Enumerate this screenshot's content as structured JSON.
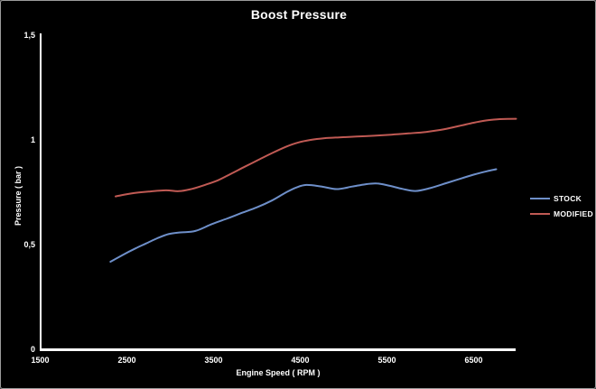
{
  "chart_data": {
    "type": "line",
    "title": "Boost Pressure",
    "xlabel": "Engine Speed ( RPM )",
    "ylabel": "Pressure ( bar )",
    "xlim": [
      1500,
      6990
    ],
    "ylim": [
      0,
      1.5
    ],
    "grid": false,
    "legend_position": "right",
    "background_color": "#000000",
    "axis_color": "#ffffff",
    "x_ticks": {
      "values": [
        1500,
        2500,
        3500,
        4500,
        5500,
        6500
      ],
      "labels": [
        "1500",
        "2500",
        "3500",
        "4500",
        "5500",
        "6500"
      ]
    },
    "y_ticks": {
      "values": [
        0,
        0.5,
        1,
        1.5
      ],
      "labels": [
        "0",
        "0,5",
        "1",
        "1,5"
      ]
    },
    "series": [
      {
        "name": "STOCK",
        "color": "#6e8fc9",
        "points": [
          [
            2310,
            0.418
          ],
          [
            2450,
            0.45
          ],
          [
            2600,
            0.482
          ],
          [
            2720,
            0.505
          ],
          [
            2850,
            0.53
          ],
          [
            2980,
            0.55
          ],
          [
            3120,
            0.558
          ],
          [
            3290,
            0.565
          ],
          [
            3480,
            0.598
          ],
          [
            3660,
            0.625
          ],
          [
            3830,
            0.652
          ],
          [
            4000,
            0.678
          ],
          [
            4170,
            0.71
          ],
          [
            4330,
            0.748
          ],
          [
            4450,
            0.772
          ],
          [
            4570,
            0.785
          ],
          [
            4750,
            0.777
          ],
          [
            4920,
            0.765
          ],
          [
            5100,
            0.777
          ],
          [
            5250,
            0.788
          ],
          [
            5380,
            0.792
          ],
          [
            5520,
            0.782
          ],
          [
            5680,
            0.766
          ],
          [
            5830,
            0.756
          ],
          [
            6000,
            0.77
          ],
          [
            6180,
            0.793
          ],
          [
            6350,
            0.815
          ],
          [
            6500,
            0.834
          ],
          [
            6650,
            0.85
          ],
          [
            6760,
            0.86
          ]
        ]
      },
      {
        "name": "MODIFIED",
        "color": "#c05a54",
        "points": [
          [
            2370,
            0.73
          ],
          [
            2550,
            0.744
          ],
          [
            2750,
            0.753
          ],
          [
            2950,
            0.759
          ],
          [
            3100,
            0.755
          ],
          [
            3250,
            0.766
          ],
          [
            3400,
            0.785
          ],
          [
            3550,
            0.807
          ],
          [
            3700,
            0.838
          ],
          [
            3860,
            0.872
          ],
          [
            4020,
            0.905
          ],
          [
            4180,
            0.938
          ],
          [
            4340,
            0.968
          ],
          [
            4480,
            0.988
          ],
          [
            4620,
            1.0
          ],
          [
            4780,
            1.008
          ],
          [
            4950,
            1.012
          ],
          [
            5150,
            1.016
          ],
          [
            5350,
            1.02
          ],
          [
            5550,
            1.025
          ],
          [
            5750,
            1.031
          ],
          [
            5950,
            1.038
          ],
          [
            6150,
            1.05
          ],
          [
            6350,
            1.068
          ],
          [
            6500,
            1.082
          ],
          [
            6650,
            1.093
          ],
          [
            6800,
            1.099
          ],
          [
            6990,
            1.101
          ]
        ]
      }
    ]
  }
}
